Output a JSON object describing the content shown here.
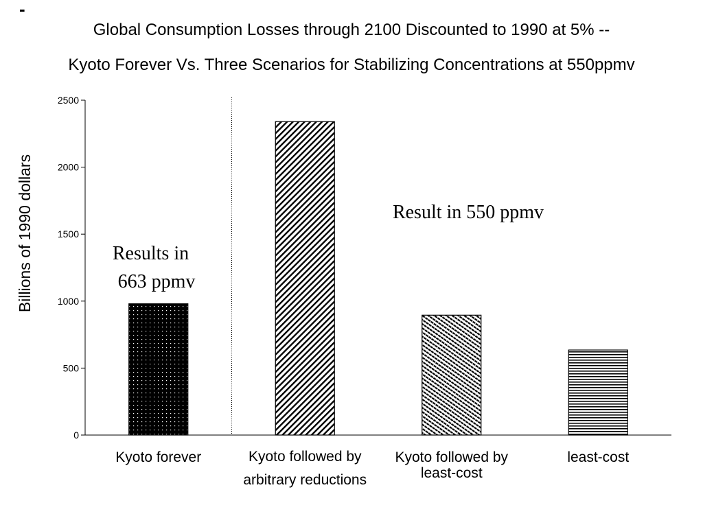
{
  "header": {
    "dash": "-",
    "title_line1": "Global Consumption Losses through 2100 Discounted to 1990 at 5% --",
    "title_line2": "Kyoto Forever Vs. Three Scenarios for Stabilizing Concentrations at 550ppmv"
  },
  "chart_data": {
    "type": "bar",
    "title": "Global Consumption Losses through 2100 Discounted to 1990 at 5% -- Kyoto Forever Vs. Three Scenarios for Stabilizing Concentrations at 550ppmv",
    "xlabel": "",
    "ylabel": "Billions of 1990 dollars",
    "ylim": [
      0,
      2500
    ],
    "yticks": [
      0,
      500,
      1000,
      1500,
      2000,
      2500
    ],
    "grid": false,
    "legend": "none",
    "categories": [
      [
        "Kyoto forever"
      ],
      [
        "Kyoto followed by",
        "arbitrary reductions"
      ],
      [
        "Kyoto followed by",
        "least-cost"
      ],
      [
        "least-cost"
      ]
    ],
    "values": [
      980,
      2340,
      895,
      635
    ],
    "patterns": [
      "dotted-black",
      "diagonal-hatch",
      "dense-diagonal-hatch",
      "horizontal-lines"
    ],
    "annotations": [
      {
        "lines": [
          "Results in",
          "663 ppmv"
        ]
      },
      {
        "lines": [
          "Result in 550 ppmv"
        ]
      }
    ],
    "divider": "dotted-vertical-between-first-and-second-bar"
  }
}
